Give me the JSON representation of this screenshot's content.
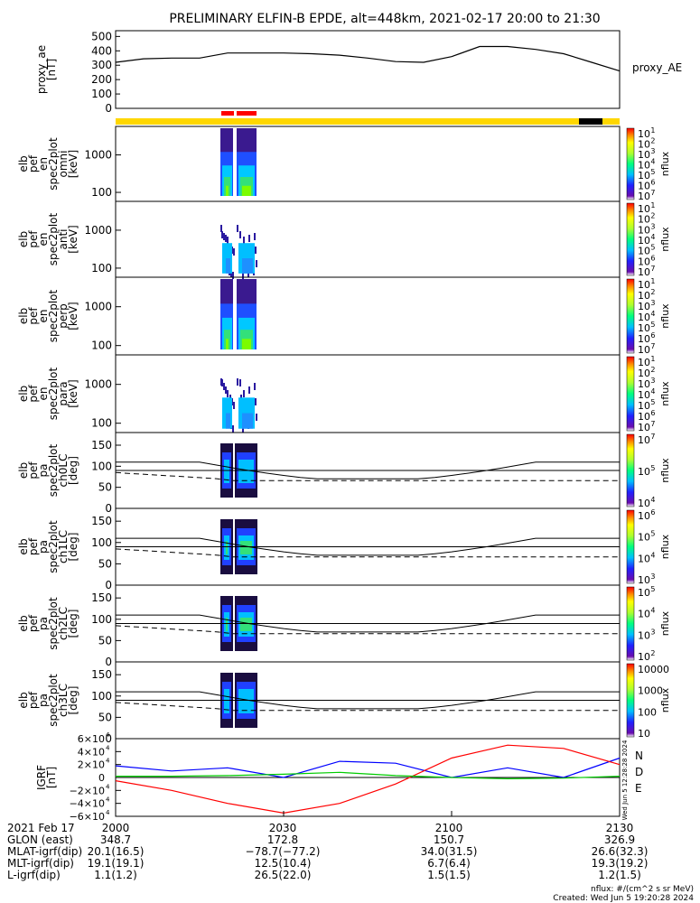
{
  "title": "PRELIMINARY ELFIN-B EPDE, alt=448km, 2021-02-17 20:00 to 21:30",
  "colors": {
    "bar_yellow": "#ffd700",
    "bar_red": "#ff0000",
    "bar_black": "#000000",
    "trace_n": "#0000ff",
    "trace_d": "#ff0000",
    "trace_e": "#00cc00"
  },
  "chart_data": [
    {
      "type": "line",
      "panel": "proxy_ae",
      "ylabel": "proxy_ae\n[nT]",
      "yticks": [
        "500",
        "400",
        "300",
        "200",
        "100",
        "0"
      ],
      "ylim": [
        0,
        540
      ],
      "series": [
        {
          "name": "proxy_AE",
          "x": [
            0,
            5,
            10,
            15,
            20,
            25,
            30,
            35,
            40,
            45,
            50,
            55,
            60,
            65,
            70,
            75,
            80,
            85,
            90
          ],
          "values": [
            320,
            345,
            350,
            350,
            385,
            385,
            385,
            380,
            370,
            350,
            325,
            320,
            360,
            430,
            430,
            410,
            380,
            320,
            260
          ]
        }
      ]
    },
    {
      "type": "heatmap",
      "panel": "elb_pef_en_spec2plot_omni",
      "ylabel": "elb\npef\nen\nspec2plot\nomni\n[keV]",
      "yticks": [
        "1000",
        "100"
      ],
      "scale": "log",
      "zlabel": "nflux",
      "zticks": [
        "10",
        "10",
        "10",
        "10",
        "10",
        "10",
        "10"
      ],
      "zexp": [
        "1",
        "2",
        "3",
        "4",
        "5",
        "6",
        "7"
      ]
    },
    {
      "type": "heatmap",
      "panel": "elb_pef_en_spec2plot_anti",
      "ylabel": "elb\npef\nen\nspec2plot\nanti\n[keV]",
      "yticks": [
        "1000",
        "100"
      ],
      "scale": "log",
      "zlabel": "nflux",
      "zticks": [
        "10",
        "10",
        "10",
        "10",
        "10",
        "10",
        "10"
      ],
      "zexp": [
        "1",
        "2",
        "3",
        "4",
        "5",
        "6",
        "7"
      ]
    },
    {
      "type": "heatmap",
      "panel": "elb_pef_en_spec2plot_perp",
      "ylabel": "elb\npef\nen\nspec2plot\nperp\n[keV]",
      "yticks": [
        "1000",
        "100"
      ],
      "scale": "log",
      "zlabel": "nflux",
      "zticks": [
        "10",
        "10",
        "10",
        "10",
        "10",
        "10",
        "10"
      ],
      "zexp": [
        "1",
        "2",
        "3",
        "4",
        "5",
        "6",
        "7"
      ]
    },
    {
      "type": "heatmap",
      "panel": "elb_pef_en_spec2plot_para",
      "ylabel": "elb\npef\nen\nspec2plot\npara\n[keV]",
      "yticks": [
        "1000",
        "100"
      ],
      "scale": "log",
      "zlabel": "nflux",
      "zticks": [
        "10",
        "10",
        "10",
        "10",
        "10",
        "10",
        "10"
      ],
      "zexp": [
        "1",
        "2",
        "3",
        "4",
        "5",
        "6",
        "7"
      ]
    },
    {
      "type": "heatmap",
      "panel": "elb_pef_pa_spec2plot_ch0LC",
      "ylabel": "elb\npef\npa\nspec2plot\nch0LC\n[deg]",
      "yticks": [
        "150",
        "100",
        "50",
        "0"
      ],
      "ylim": [
        0,
        180
      ],
      "zlabel": "nflux",
      "zticks": [
        "10",
        "10",
        "10"
      ],
      "zexp": [
        "7",
        "5",
        "4"
      ]
    },
    {
      "type": "heatmap",
      "panel": "elb_pef_pa_spec2plot_ch1LC",
      "ylabel": "elb\npef\npa\nspec2plot\nch1LC\n[deg]",
      "yticks": [
        "150",
        "100",
        "50",
        "0"
      ],
      "ylim": [
        0,
        180
      ],
      "zlabel": "nflux",
      "zticks": [
        "10",
        "10",
        "10",
        "10"
      ],
      "zexp": [
        "6",
        "5",
        "4",
        "3"
      ]
    },
    {
      "type": "heatmap",
      "panel": "elb_pef_pa_spec2plot_ch2LC",
      "ylabel": "elb\npef\npa\nspec2plot\nch2LC\n[deg]",
      "yticks": [
        "150",
        "100",
        "50",
        "0"
      ],
      "ylim": [
        0,
        180
      ],
      "zlabel": "nflux",
      "zticks": [
        "10",
        "10",
        "10",
        "10"
      ],
      "zexp": [
        "5",
        "4",
        "3",
        "2"
      ]
    },
    {
      "type": "heatmap",
      "panel": "elb_pef_pa_spec2plot_ch3LC",
      "ylabel": "elb\npef\npa\nspec2plot\nch3LC\n[deg]",
      "yticks": [
        "150",
        "100",
        "50",
        "0"
      ],
      "ylim": [
        0,
        180
      ],
      "zlabel": "nflux",
      "zticks": [
        "10000",
        "1000",
        "100",
        "10"
      ]
    },
    {
      "type": "line",
      "panel": "igrf",
      "ylabel": "IGRF\n[nT]",
      "yticks": [
        "6×10",
        "4×10",
        "2×10",
        "0",
        "−2×10",
        "−4×10",
        "−6×10"
      ],
      "yexp": [
        "4",
        "4",
        "4",
        "",
        "4",
        "4",
        "4"
      ],
      "ylim": [
        -60000,
        60000
      ],
      "legend": [
        "N",
        "D",
        "E"
      ],
      "series": [
        {
          "name": "N",
          "x": [
            0,
            10,
            20,
            30,
            40,
            50,
            60,
            70,
            80,
            90
          ],
          "values": [
            18000,
            10000,
            15000,
            0,
            25000,
            22000,
            0,
            15000,
            0,
            30000
          ]
        },
        {
          "name": "D",
          "x": [
            0,
            10,
            20,
            30,
            40,
            50,
            60,
            70,
            80,
            90
          ],
          "values": [
            -5000,
            -20000,
            -40000,
            -55000,
            -40000,
            -10000,
            30000,
            50000,
            45000,
            20000
          ]
        },
        {
          "name": "E",
          "x": [
            0,
            10,
            20,
            30,
            40,
            50,
            60,
            70,
            80,
            90
          ],
          "values": [
            2000,
            2000,
            3000,
            5000,
            8000,
            3000,
            0,
            -2000,
            -1000,
            2000
          ]
        }
      ]
    }
  ],
  "footer": {
    "rows": [
      {
        "label": "2021 Feb 17",
        "values": [
          "2000",
          "2030",
          "2100",
          "2130"
        ]
      },
      {
        "label": "GLON (east)",
        "values": [
          "348.7",
          "172.8",
          "150.7",
          "326.9"
        ]
      },
      {
        "label": "MLAT-igrf(dip)",
        "values": [
          "20.1(16.5)",
          "−78.7(−77.2)",
          "34.0(31.5)",
          "26.6(32.3)"
        ]
      },
      {
        "label": "MLT-igrf(dip)",
        "values": [
          "19.1(19.1)",
          "12.5(10.4)",
          "6.7(6.4)",
          "19.3(19.2)"
        ]
      },
      {
        "label": "L-igrf(dip)",
        "values": [
          "1.1(1.2)",
          "26.5(22.0)",
          "1.5(1.5)",
          "1.2(1.5)"
        ]
      }
    ],
    "units": "nflux: #/(cm^2 s sr MeV)",
    "created": "Created: Wed Jun  5 19:20:28 2024",
    "side_stamp": "Wed Jun  5 12:28:28 2024"
  }
}
